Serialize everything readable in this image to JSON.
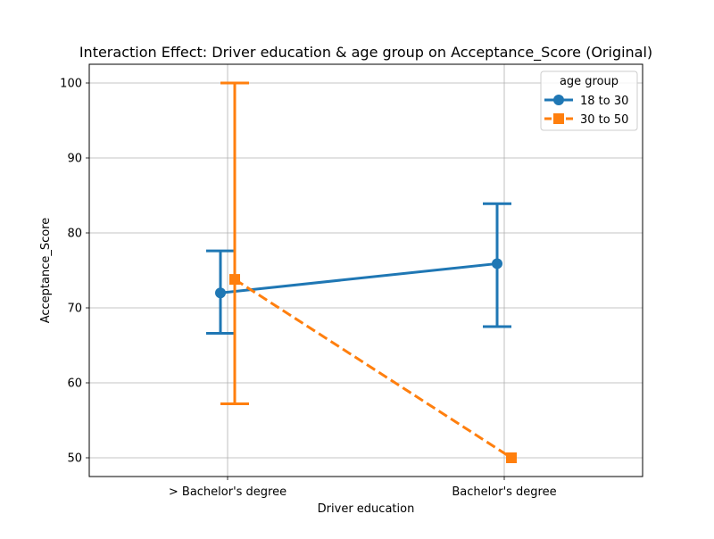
{
  "chart_data": {
    "type": "line",
    "title": "Interaction Effect: Driver education & age group on Acceptance_Score (Original)",
    "xlabel": "Driver education",
    "ylabel": "Acceptance_Score",
    "categories": [
      "> Bachelor's degree",
      "Bachelor's degree"
    ],
    "ylim": [
      47.5,
      102.5
    ],
    "yticks": [
      50,
      60,
      70,
      80,
      90,
      100
    ],
    "grid": true,
    "legend": {
      "title": "age group",
      "placement": "top-right"
    },
    "series": [
      {
        "name": "18 to 30",
        "color": "#1f77b4",
        "marker": "circle",
        "linestyle": "solid",
        "values": [
          72.0,
          75.9
        ],
        "ci_low": [
          66.6,
          67.5
        ],
        "ci_high": [
          77.6,
          83.9
        ]
      },
      {
        "name": "30 to 50",
        "color": "#ff7f0e",
        "marker": "square",
        "linestyle": "dashed",
        "values": [
          73.8,
          50.0
        ],
        "ci_low": [
          57.2,
          50.0
        ],
        "ci_high": [
          100.0,
          50.0
        ]
      }
    ]
  }
}
